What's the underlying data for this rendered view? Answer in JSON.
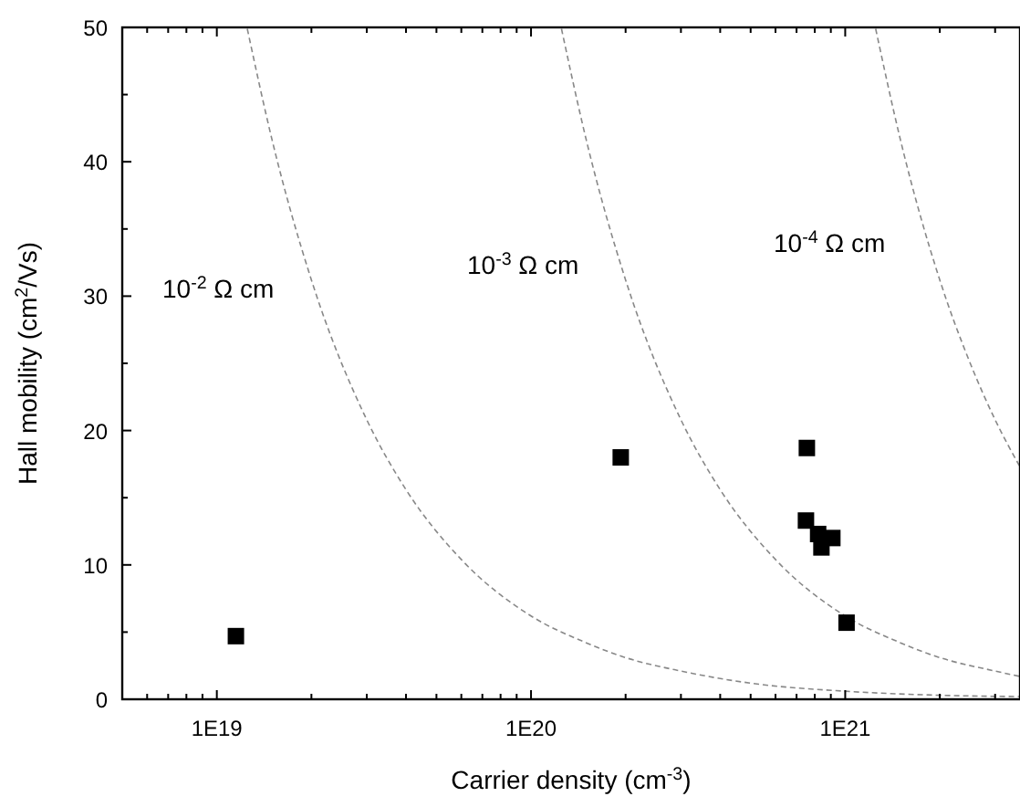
{
  "chart_data": {
    "type": "scatter",
    "xlabel": "Carrier density (cm$^{-3}$)",
    "ylabel": "Hall mobility (cm$^{2}$/Vs)",
    "log": "x",
    "xlim": [
      5e+18,
      3.6e+21
    ],
    "ylim": [
      0,
      50
    ],
    "xticks": [
      {
        "value": 6e+18,
        "label": null
      },
      {
        "value": 7e+18,
        "label": null
      },
      {
        "value": 8e+18,
        "label": null
      },
      {
        "value": 9e+18,
        "label": null
      },
      {
        "value": 1e+19,
        "label": "1E19"
      },
      {
        "value": 2e+19,
        "label": null
      },
      {
        "value": 3e+19,
        "label": null
      },
      {
        "value": 4e+19,
        "label": null
      },
      {
        "value": 5e+19,
        "label": null
      },
      {
        "value": 6e+19,
        "label": null
      },
      {
        "value": 7e+19,
        "label": null
      },
      {
        "value": 8e+19,
        "label": null
      },
      {
        "value": 9e+19,
        "label": null
      },
      {
        "value": 1e+20,
        "label": "1E20"
      },
      {
        "value": 2e+20,
        "label": null
      },
      {
        "value": 3e+20,
        "label": null
      },
      {
        "value": 4e+20,
        "label": null
      },
      {
        "value": 5e+20,
        "label": null
      },
      {
        "value": 6e+20,
        "label": null
      },
      {
        "value": 7e+20,
        "label": null
      },
      {
        "value": 8e+20,
        "label": null
      },
      {
        "value": 9e+20,
        "label": null
      },
      {
        "value": 1e+21,
        "label": "1E21"
      },
      {
        "value": 2e+21,
        "label": null
      },
      {
        "value": 3e+21,
        "label": null
      }
    ],
    "yticks": [
      0,
      {
        "value": 5,
        "label": null
      },
      10,
      {
        "value": 15,
        "label": null
      },
      20,
      {
        "value": 25,
        "label": null
      },
      30,
      {
        "value": 35,
        "label": null
      },
      40,
      {
        "value": 45,
        "label": null
      },
      50
    ],
    "grid": false,
    "series": [
      {
        "marker": "square",
        "color": "#000000",
        "x": [
          1.15e+19,
          1.93e+20,
          7.55e+20,
          7.5e+20,
          8.2e+20,
          8.4e+20,
          9.1e+20,
          1.01e+21
        ],
        "values": [
          4.7,
          18,
          18.7,
          13.3,
          12.3,
          11.3,
          12.0,
          5.7
        ]
      },
      {
        "type": "line",
        "marker": "none",
        "color": "#888888",
        "line_style": "dashed",
        "x": [
          1.25e+19,
          1.5e+19,
          2e+19,
          3e+19,
          4e+19,
          6e+19,
          1e+20,
          1.5e+20,
          2e+20,
          3e+20,
          5e+20,
          1e+21,
          2e+21,
          3.6e+21
        ],
        "values": [
          49.9,
          41.6,
          31.2,
          20.8,
          15.6,
          10.4,
          6.2,
          4.2,
          3.1,
          2.1,
          1.2,
          0.6,
          0.3,
          0.2
        ]
      },
      {
        "type": "line",
        "marker": "none",
        "color": "#888888",
        "line_style": "dashed",
        "x": [
          1.25e+20,
          1.5e+20,
          2e+20,
          3e+20,
          4e+20,
          6e+20,
          1e+21,
          1.5e+21,
          2e+21,
          3e+21,
          3.6e+21
        ],
        "values": [
          49.9,
          41.6,
          31.2,
          20.8,
          15.6,
          10.4,
          6.2,
          4.2,
          3.1,
          2.1,
          1.7
        ]
      },
      {
        "type": "line",
        "marker": "none",
        "color": "#888888",
        "line_style": "dashed",
        "x": [
          1.25e+21,
          1.5e+21,
          2e+21,
          2.5e+21,
          3e+21,
          3.6e+21
        ],
        "values": [
          49.9,
          41.6,
          31.2,
          25,
          20.8,
          17.3
        ]
      }
    ],
    "annotations": [
      "10$^{-2}$ Ω cm",
      "10$^{-3}$ Ω cm",
      "10$^{-4}$ Ω cm"
    ]
  }
}
